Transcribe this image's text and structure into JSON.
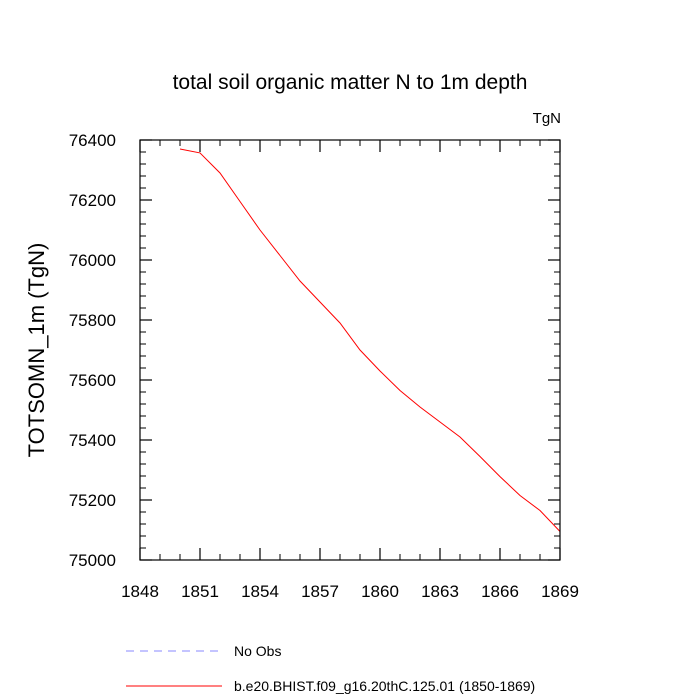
{
  "chart_data": {
    "type": "line",
    "title": "total soil organic matter N to 1m depth",
    "units_label": "TgN",
    "ylabel": "TOTSOMN_1m  (TgN)",
    "xlabel": "",
    "xlim": [
      1848,
      1869
    ],
    "ylim": [
      75000,
      76400
    ],
    "x_ticks": [
      1848,
      1851,
      1854,
      1857,
      1860,
      1863,
      1866,
      1869
    ],
    "x_tick_labels": [
      "1848",
      "1851",
      "1854",
      "1857",
      "1860",
      "1863",
      "1866",
      "1869"
    ],
    "y_ticks": [
      75000,
      75200,
      75400,
      75600,
      75800,
      76000,
      76200,
      76400
    ],
    "y_tick_labels": [
      "75000",
      "75200",
      "75400",
      "75600",
      "75800",
      "76000",
      "76200",
      "76400"
    ],
    "x_minor_step": 1,
    "y_minor_step": 40,
    "grid": false,
    "series": [
      {
        "name": "b.e20.BHIST.f09_g16.20thC.125.01 (1850-1869)",
        "color": "#ff0000",
        "dash": "solid",
        "x": [
          1850,
          1851,
          1852,
          1853,
          1854,
          1855,
          1856,
          1857,
          1858,
          1859,
          1860,
          1861,
          1862,
          1863,
          1864,
          1865,
          1866,
          1867,
          1868,
          1869
        ],
        "y": [
          76370,
          76357,
          76290,
          76195,
          76100,
          76015,
          75930,
          75860,
          75790,
          75700,
          75630,
          75565,
          75510,
          75460,
          75410,
          75345,
          75278,
          75215,
          75165,
          75095
        ]
      }
    ],
    "legend": {
      "placement": "bottom-left",
      "entries": [
        {
          "label": "No Obs",
          "color": "#8888ff",
          "dash": "dashed"
        },
        {
          "label": "b.e20.BHIST.f09_g16.20thC.125.01 (1850-1869)",
          "color": "#ff0000",
          "dash": "solid"
        }
      ]
    }
  }
}
